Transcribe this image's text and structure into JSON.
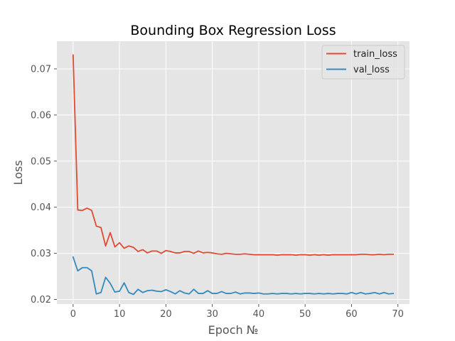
{
  "chart_data": {
    "type": "line",
    "title": "Bounding Box Regression Loss",
    "xlabel": "Epoch №",
    "ylabel": "Loss",
    "xlim": [
      -3.5,
      72.5
    ],
    "ylim": [
      0.019,
      0.076
    ],
    "xticks": [
      0,
      10,
      20,
      30,
      40,
      50,
      60,
      70
    ],
    "yticks": [
      0.02,
      0.03,
      0.04,
      0.05,
      0.06,
      0.07
    ],
    "ytick_labels": [
      "0.02",
      "0.03",
      "0.04",
      "0.05",
      "0.06",
      "0.07"
    ],
    "grid": true,
    "legend_position": "top-right",
    "background_color": "#e5e5e5",
    "x": [
      0,
      1,
      2,
      3,
      4,
      5,
      6,
      7,
      8,
      9,
      10,
      11,
      12,
      13,
      14,
      15,
      16,
      17,
      18,
      19,
      20,
      21,
      22,
      23,
      24,
      25,
      26,
      27,
      28,
      29,
      30,
      31,
      32,
      33,
      34,
      35,
      36,
      37,
      38,
      39,
      40,
      41,
      42,
      43,
      44,
      45,
      46,
      47,
      48,
      49,
      50,
      51,
      52,
      53,
      54,
      55,
      56,
      57,
      58,
      59,
      60,
      61,
      62,
      63,
      64,
      65,
      66,
      67,
      68,
      69
    ],
    "series": [
      {
        "name": "train_loss",
        "color": "#e24a33",
        "values": [
          0.073,
          0.0394,
          0.0393,
          0.0398,
          0.0393,
          0.0359,
          0.0356,
          0.0316,
          0.0345,
          0.0314,
          0.0323,
          0.0311,
          0.0316,
          0.0313,
          0.0304,
          0.0308,
          0.0301,
          0.0305,
          0.0305,
          0.03,
          0.0306,
          0.0304,
          0.0301,
          0.0301,
          0.0304,
          0.0304,
          0.03,
          0.0305,
          0.0301,
          0.0302,
          0.0301,
          0.0299,
          0.0298,
          0.03,
          0.0299,
          0.0298,
          0.0298,
          0.0299,
          0.0298,
          0.0297,
          0.0297,
          0.0297,
          0.0297,
          0.0297,
          0.0296,
          0.0297,
          0.0297,
          0.0297,
          0.0296,
          0.0297,
          0.0297,
          0.0296,
          0.0297,
          0.0296,
          0.0297,
          0.0296,
          0.0297,
          0.0297,
          0.0297,
          0.0297,
          0.0297,
          0.0297,
          0.0298,
          0.0298,
          0.0297,
          0.0297,
          0.0298,
          0.0297,
          0.0298,
          0.0298
        ]
      },
      {
        "name": "val_loss",
        "color": "#348abd",
        "values": [
          0.0292,
          0.0262,
          0.0269,
          0.0269,
          0.0262,
          0.0212,
          0.0215,
          0.0248,
          0.0235,
          0.0216,
          0.0218,
          0.0236,
          0.0215,
          0.0211,
          0.0222,
          0.0215,
          0.0219,
          0.022,
          0.0218,
          0.0217,
          0.0221,
          0.0217,
          0.0212,
          0.0219,
          0.0214,
          0.0212,
          0.0222,
          0.0213,
          0.0213,
          0.0219,
          0.0213,
          0.0213,
          0.0217,
          0.0213,
          0.0213,
          0.0216,
          0.0212,
          0.0214,
          0.0214,
          0.0213,
          0.0214,
          0.0212,
          0.0212,
          0.0213,
          0.0212,
          0.0213,
          0.0213,
          0.0212,
          0.0213,
          0.0212,
          0.0213,
          0.0213,
          0.0212,
          0.0213,
          0.0212,
          0.0213,
          0.0212,
          0.0213,
          0.0213,
          0.0212,
          0.0215,
          0.0212,
          0.0215,
          0.0212,
          0.0213,
          0.0215,
          0.0212,
          0.0215,
          0.0212,
          0.0213
        ]
      }
    ]
  }
}
